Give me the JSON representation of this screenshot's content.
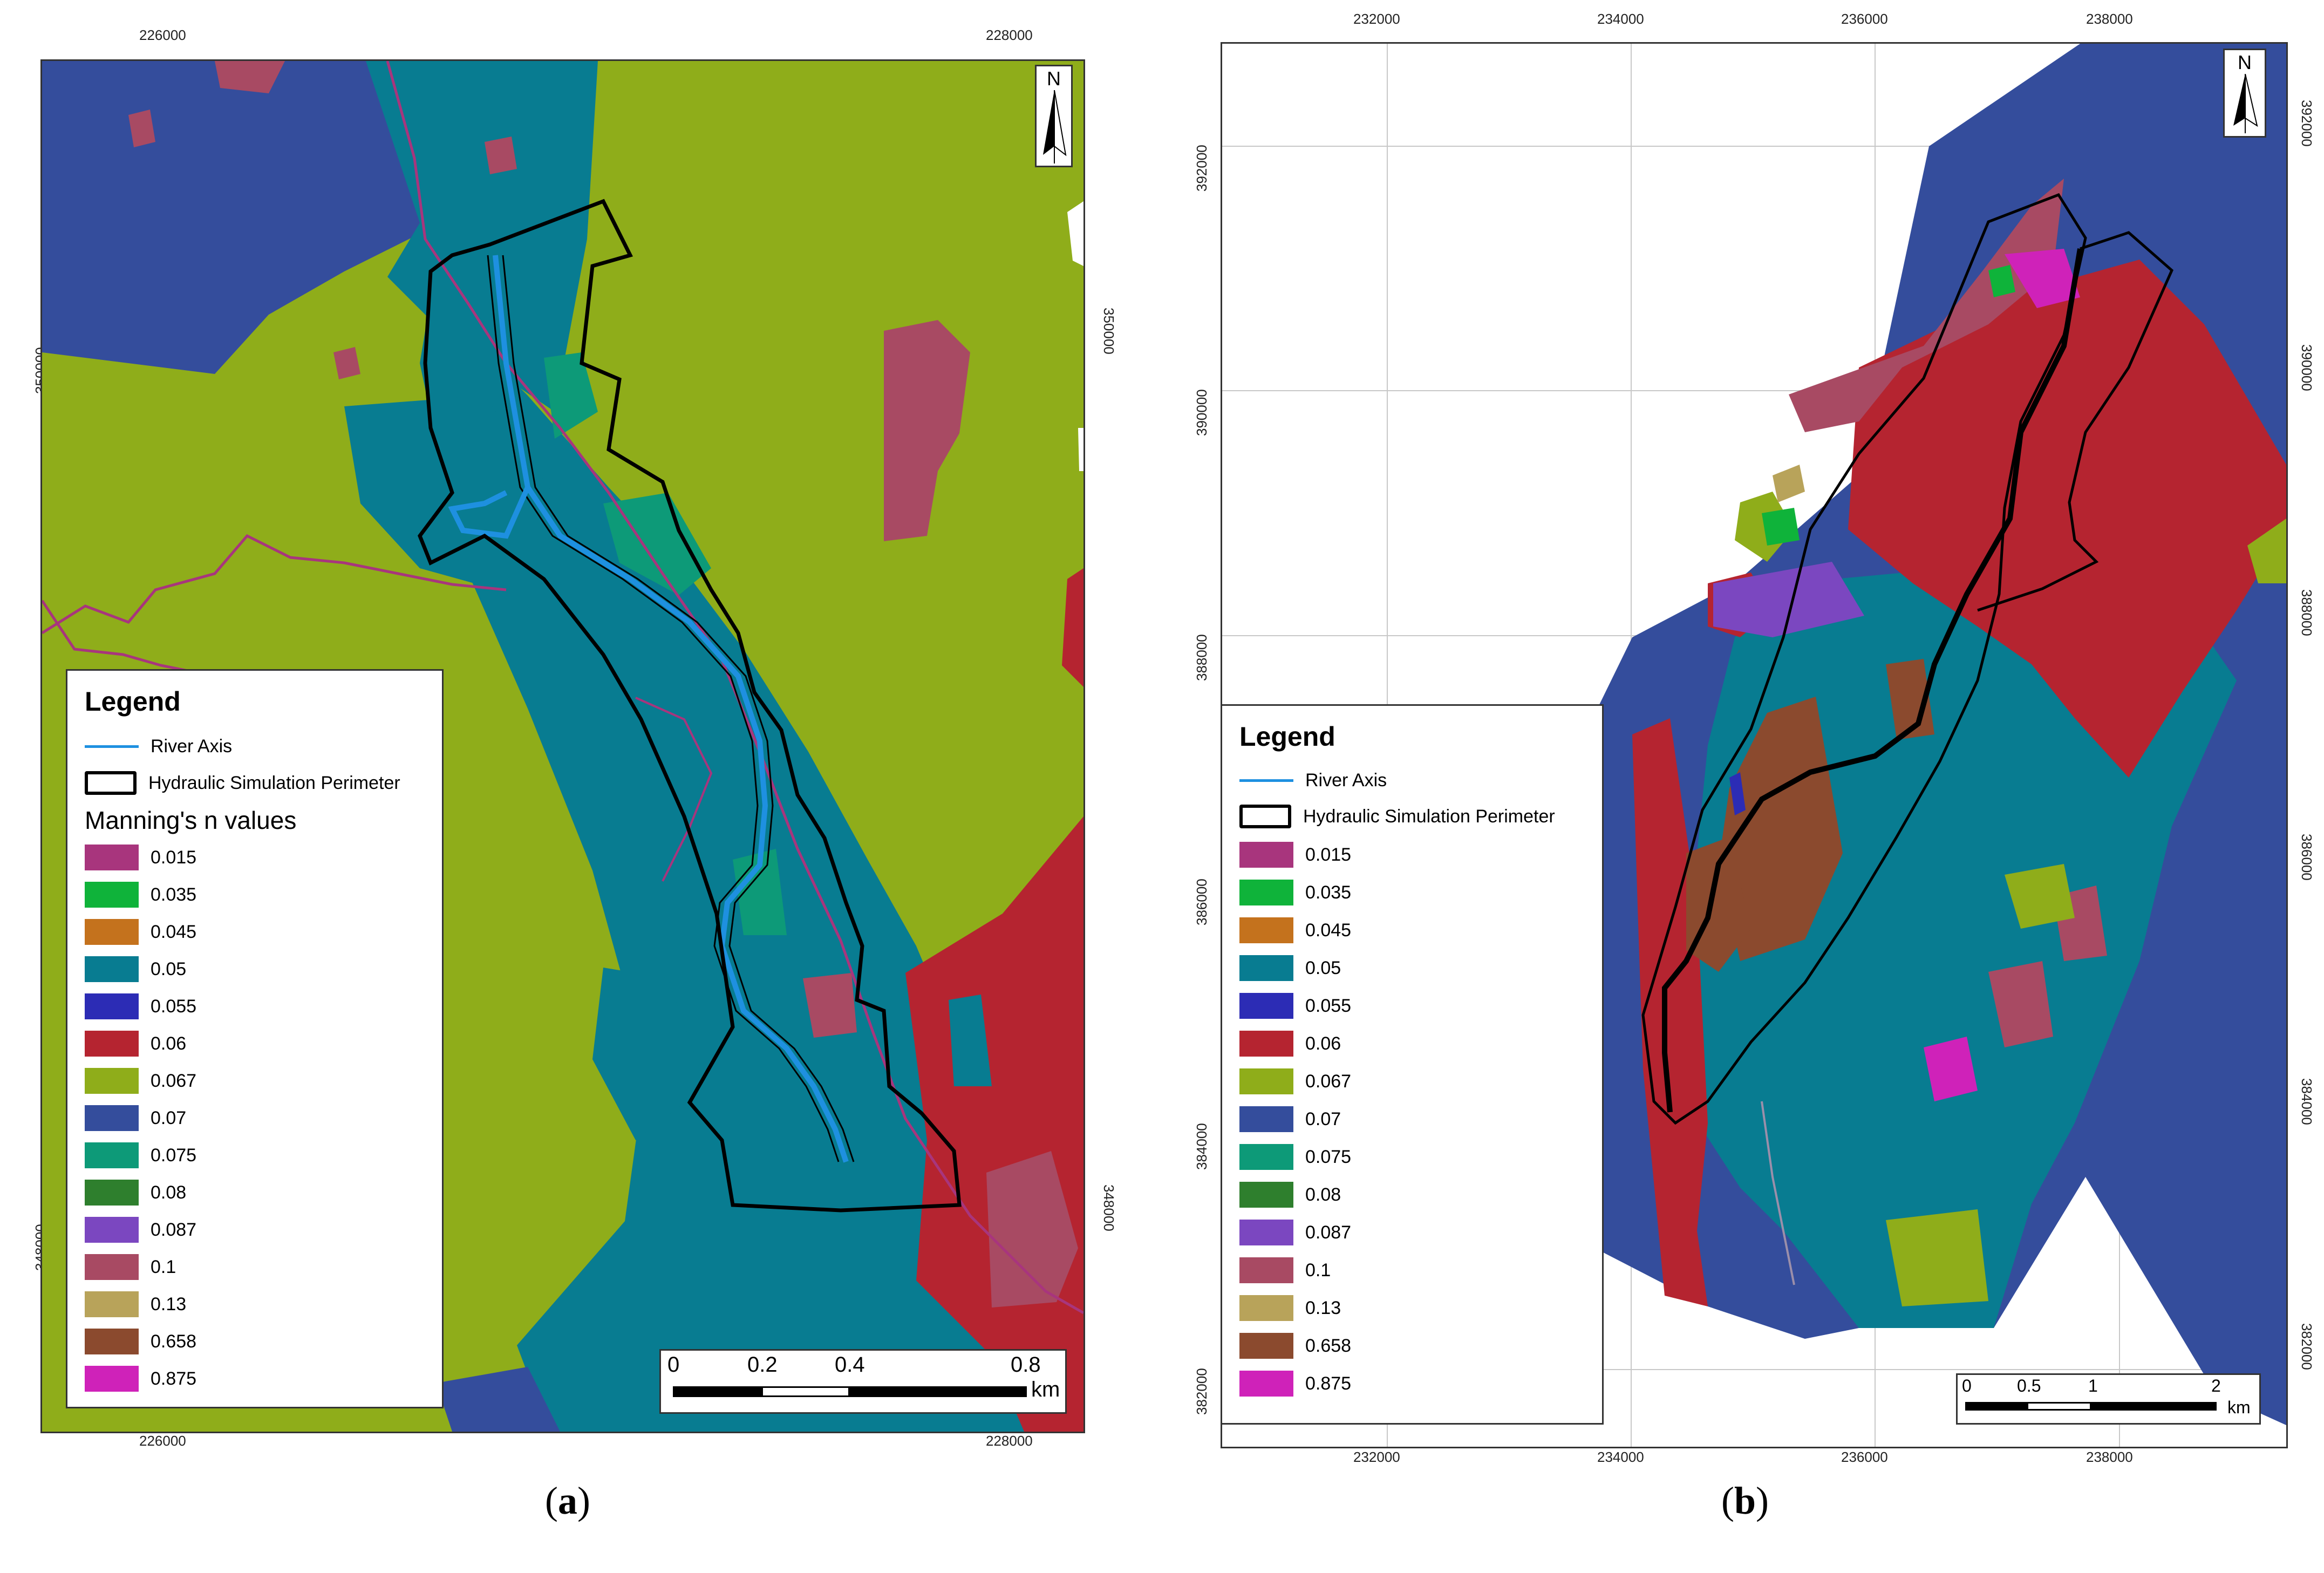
{
  "legend": {
    "title": "Legend",
    "river_axis": "River Axis",
    "perimeter": "Hydraulic Simulation Perimeter",
    "mannings_title": "Manning's n values",
    "classes": [
      {
        "value": "0.015",
        "color": "#a8357d"
      },
      {
        "value": "0.035",
        "color": "#0fb33a"
      },
      {
        "value": "0.045",
        "color": "#c4721d"
      },
      {
        "value": "0.05",
        "color": "#087c91"
      },
      {
        "value": "0.055",
        "color": "#2c2cb5"
      },
      {
        "value": "0.06",
        "color": "#b52430"
      },
      {
        "value": "0.067",
        "color": "#8fad1a"
      },
      {
        "value": "0.07",
        "color": "#344d9c"
      },
      {
        "value": "0.075",
        "color": "#0d9a78"
      },
      {
        "value": "0.08",
        "color": "#2e7f2d"
      },
      {
        "value": "0.087",
        "color": "#7b47c0"
      },
      {
        "value": "0.1",
        "color": "#a84a63"
      },
      {
        "value": "0.13",
        "color": "#b8a35a"
      },
      {
        "value": "0.658",
        "color": "#8b4a2e"
      },
      {
        "value": "0.875",
        "color": "#cf22b9"
      }
    ]
  },
  "map_a": {
    "caption_letter": "a",
    "x_ticks": [
      "226000",
      "228000"
    ],
    "y_ticks": [
      "350000",
      "348000"
    ],
    "north_label": "N",
    "scale_labels": [
      "0",
      "0.2",
      "0.4",
      "0.8"
    ],
    "scale_unit": "km"
  },
  "map_b": {
    "caption_letter": "b",
    "x_ticks": [
      "232000",
      "234000",
      "236000",
      "238000"
    ],
    "y_ticks": [
      "392000",
      "390000",
      "388000",
      "386000",
      "384000",
      "382000"
    ],
    "north_label": "N",
    "scale_labels": [
      "0",
      "0.5",
      "1",
      "2"
    ],
    "scale_unit": "km"
  }
}
